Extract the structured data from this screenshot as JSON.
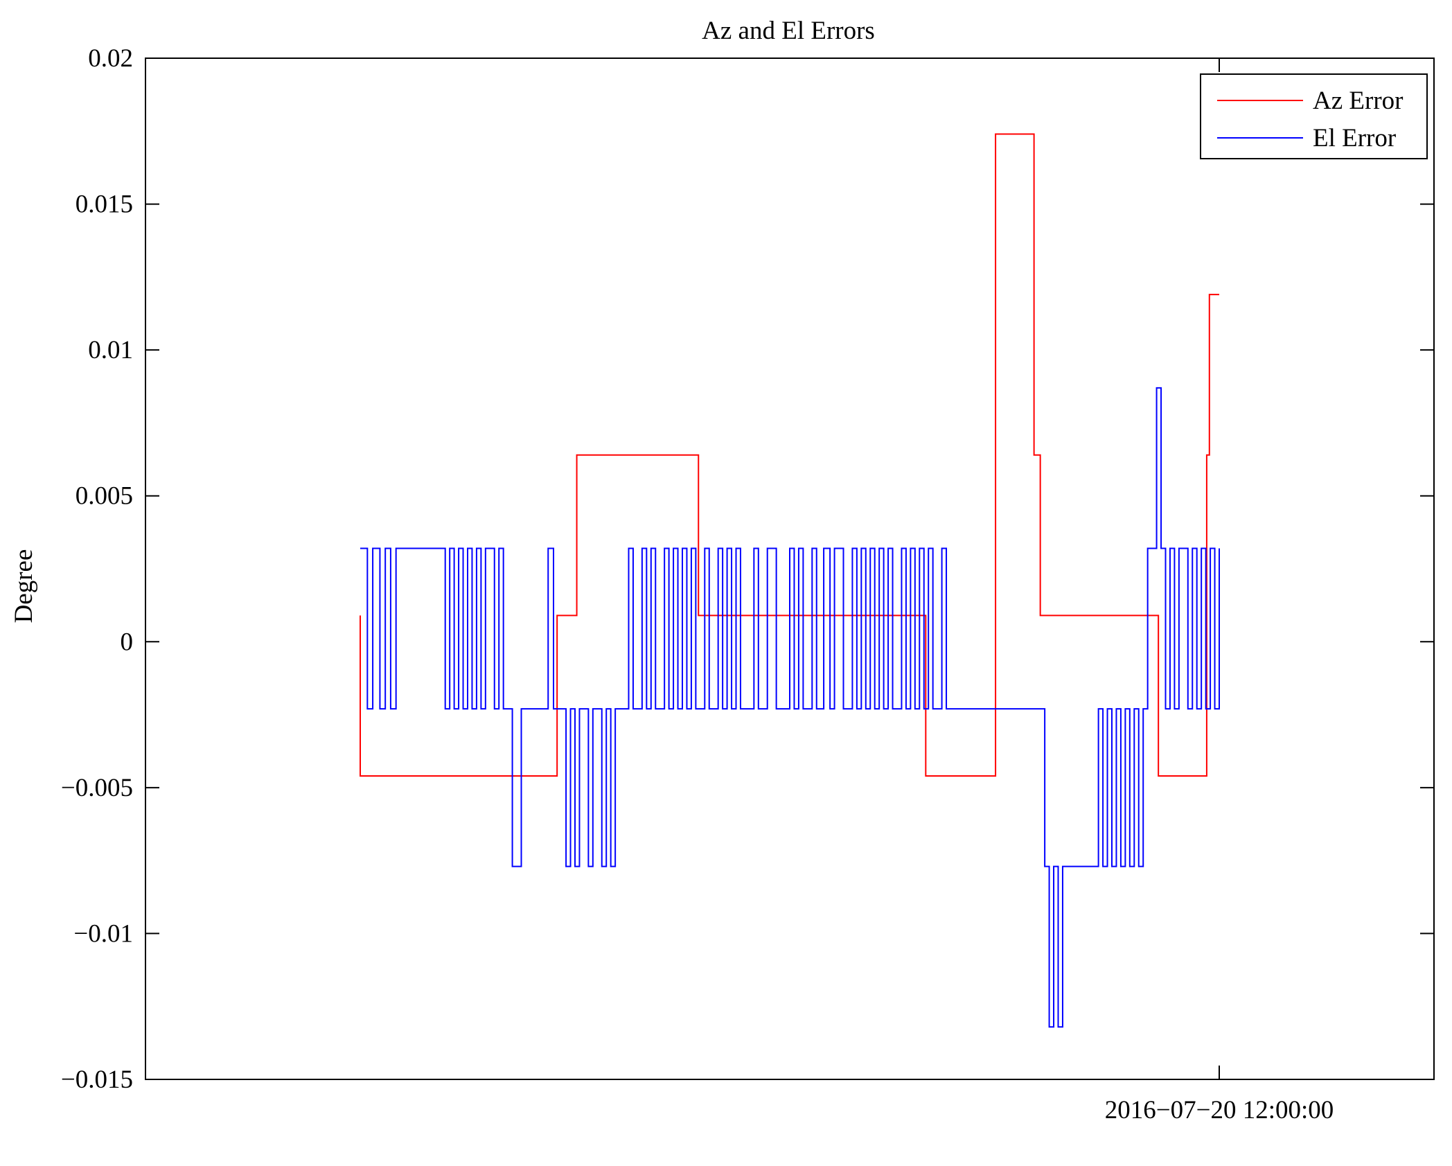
{
  "chart_data": {
    "type": "line",
    "title": "Az and El Errors",
    "xlabel": "",
    "ylabel": "Degree",
    "ylim": [
      -0.015,
      0.02
    ],
    "y_ticks": [
      -0.015,
      -0.01,
      -0.005,
      0,
      0.005,
      0.01,
      0.015,
      0.02
    ],
    "y_tick_labels": [
      "−0.015",
      "−0.01",
      "−0.005",
      "0",
      "0.005",
      "0.01",
      "0.015",
      "0.02"
    ],
    "x_unit": "hours before 2016-07-20 12:00:00",
    "xlim": [
      -12,
      2.4
    ],
    "x_ticks": [
      0
    ],
    "x_tick_labels": [
      "2016−07−20 12:00:00"
    ],
    "grid": false,
    "legend_position": "top-right",
    "series": [
      {
        "name": "Az Error",
        "color": "#ff0000",
        "step": true,
        "x": [
          -9.6,
          -9.6,
          -7.4,
          -7.4,
          -7.18,
          -7.18,
          -5.82,
          -5.82,
          -5.5,
          -5.5,
          -3.28,
          -2.5,
          -2.5,
          -2.07,
          -2.07,
          -2.0,
          -2.0,
          -0.78,
          -0.68,
          -0.63,
          -0.63,
          -0.14,
          -0.14,
          -0.11,
          -0.11,
          0.0
        ],
        "values": [
          0.0009,
          -0.0046,
          -0.0046,
          0.0009,
          0.0009,
          0.0064,
          0.0064,
          0.0009,
          0.0009,
          0.0009,
          -0.0046,
          -0.0046,
          0.0174,
          0.0174,
          0.0064,
          0.0064,
          0.0009,
          0.0009,
          -0.0046,
          -0.0046,
          -0.0046,
          -0.0046,
          0.0064,
          0.0064,
          0.0119,
          0.0119
        ]
      },
      {
        "name": "El Error",
        "color": "#0000ff",
        "step": true,
        "x": [
          -9.6,
          -9.52,
          -9.46,
          -9.38,
          -9.32,
          -9.26,
          -9.2,
          -9.12,
          -8.65,
          -8.6,
          -8.55,
          -8.5,
          -8.45,
          -8.4,
          -8.35,
          -8.3,
          -8.25,
          -8.2,
          -8.1,
          -8.05,
          -8.0,
          -7.95,
          -7.9,
          -7.8,
          -7.5,
          -7.44,
          -7.3,
          -7.25,
          -7.2,
          -7.15,
          -7.05,
          -7.0,
          -6.9,
          -6.85,
          -6.8,
          -6.75,
          -6.6,
          -6.55,
          -6.45,
          -6.4,
          -6.35,
          -6.3,
          -6.2,
          -6.15,
          -6.1,
          -6.05,
          -6.0,
          -5.95,
          -5.9,
          -5.85,
          -5.75,
          -5.7,
          -5.6,
          -5.55,
          -5.5,
          -5.45,
          -5.4,
          -5.35,
          -5.2,
          -5.15,
          -5.05,
          -4.95,
          -4.8,
          -4.75,
          -4.7,
          -4.65,
          -4.55,
          -4.5,
          -4.42,
          -4.35,
          -4.3,
          -4.2,
          -4.1,
          -4.05,
          -4.0,
          -3.95,
          -3.9,
          -3.85,
          -3.8,
          -3.75,
          -3.7,
          -3.65,
          -3.55,
          -3.5,
          -3.45,
          -3.4,
          -3.35,
          -3.3,
          -3.25,
          -3.2,
          -3.1,
          -3.05,
          -2.0,
          -1.95,
          -1.9,
          -1.85,
          -1.8,
          -1.75,
          -1.45,
          -1.35,
          -1.3,
          -1.25,
          -1.2,
          -1.15,
          -1.1,
          -1.05,
          -1.0,
          -0.95,
          -0.9,
          -0.85,
          -0.8,
          -0.75,
          -0.7,
          -0.65,
          -0.6,
          -0.55,
          -0.5,
          -0.45,
          -0.35,
          -0.3,
          -0.25,
          -0.2,
          -0.15,
          -0.1,
          -0.05,
          0.0
        ],
        "values": [
          0.0032,
          -0.0023,
          0.0032,
          -0.0023,
          0.0032,
          -0.0023,
          0.0032,
          0.0032,
          -0.0023,
          0.0032,
          -0.0023,
          0.0032,
          -0.0023,
          0.0032,
          -0.0023,
          0.0032,
          -0.0023,
          0.0032,
          -0.0023,
          0.0032,
          -0.0023,
          -0.0023,
          -0.0077,
          -0.0023,
          0.0032,
          -0.0023,
          -0.0077,
          -0.0023,
          -0.0077,
          -0.0023,
          -0.0077,
          -0.0023,
          -0.0077,
          -0.0023,
          -0.0077,
          -0.0023,
          0.0032,
          -0.0023,
          0.0032,
          -0.0023,
          0.0032,
          -0.0023,
          0.0032,
          -0.0023,
          0.0032,
          -0.0023,
          0.0032,
          -0.0023,
          0.0032,
          -0.0023,
          0.0032,
          -0.0023,
          0.0032,
          -0.0023,
          0.0032,
          -0.0023,
          0.0032,
          -0.0023,
          0.0032,
          -0.0023,
          0.0032,
          -0.0023,
          0.0032,
          -0.0023,
          0.0032,
          -0.0023,
          0.0032,
          -0.0023,
          0.0032,
          -0.0023,
          0.0032,
          -0.0023,
          0.0032,
          -0.0023,
          0.0032,
          -0.0023,
          0.0032,
          -0.0023,
          0.0032,
          -0.0023,
          0.0032,
          -0.0023,
          0.0032,
          -0.0023,
          0.0032,
          -0.0023,
          0.0032,
          -0.0023,
          0.0032,
          -0.0023,
          0.0032,
          -0.0023,
          -0.0023,
          -0.0077,
          -0.0132,
          -0.0077,
          -0.0132,
          -0.0077,
          -0.0077,
          -0.0023,
          -0.0077,
          -0.0023,
          -0.0077,
          -0.0023,
          -0.0077,
          -0.0023,
          -0.0077,
          -0.0023,
          -0.0077,
          -0.0023,
          0.0032,
          0.0032,
          0.0087,
          0.0032,
          -0.0023,
          0.0032,
          -0.0023,
          0.0032,
          -0.0023,
          0.0032,
          -0.0023,
          0.0032,
          -0.0023,
          0.0032,
          -0.0023,
          0.0032
        ]
      }
    ]
  }
}
